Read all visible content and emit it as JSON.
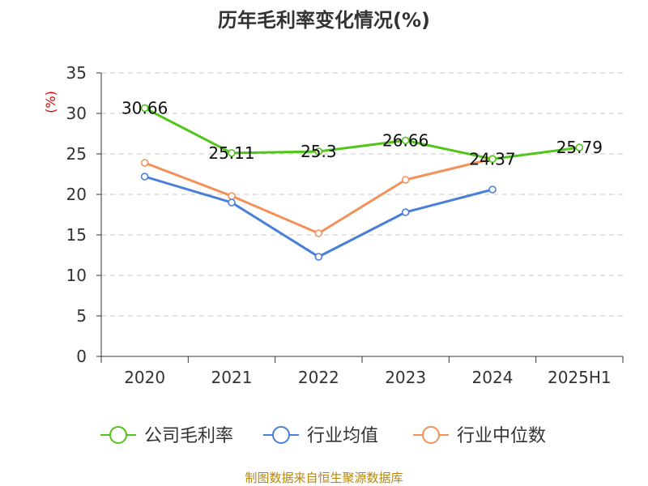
{
  "chart_data": {
    "type": "line",
    "title": "历年毛利率变化情况(%)",
    "ylabel": "(%)",
    "xlabel": "",
    "categories": [
      "2020",
      "2021",
      "2022",
      "2023",
      "2024",
      "2025H1"
    ],
    "ylim": [
      0,
      35
    ],
    "yticks": [
      0,
      5,
      10,
      15,
      20,
      25,
      30,
      35
    ],
    "grid": true,
    "legend_position": "bottom",
    "series": [
      {
        "name": "公司毛利率",
        "color": "#52c41a",
        "values": [
          30.66,
          25.11,
          25.3,
          26.66,
          24.37,
          25.79
        ],
        "labels": [
          "30.66",
          "25.11",
          "25.3",
          "26.66",
          "24.37",
          "25.79"
        ]
      },
      {
        "name": "行业均值",
        "color": "#4a7fd8",
        "values": [
          22.2,
          19.0,
          12.3,
          17.8,
          20.6,
          null
        ]
      },
      {
        "name": "行业中位数",
        "color": "#f39159",
        "values": [
          23.9,
          19.8,
          15.2,
          21.8,
          24.4,
          null
        ]
      }
    ],
    "source": "制图数据来自恒生聚源数据库"
  }
}
